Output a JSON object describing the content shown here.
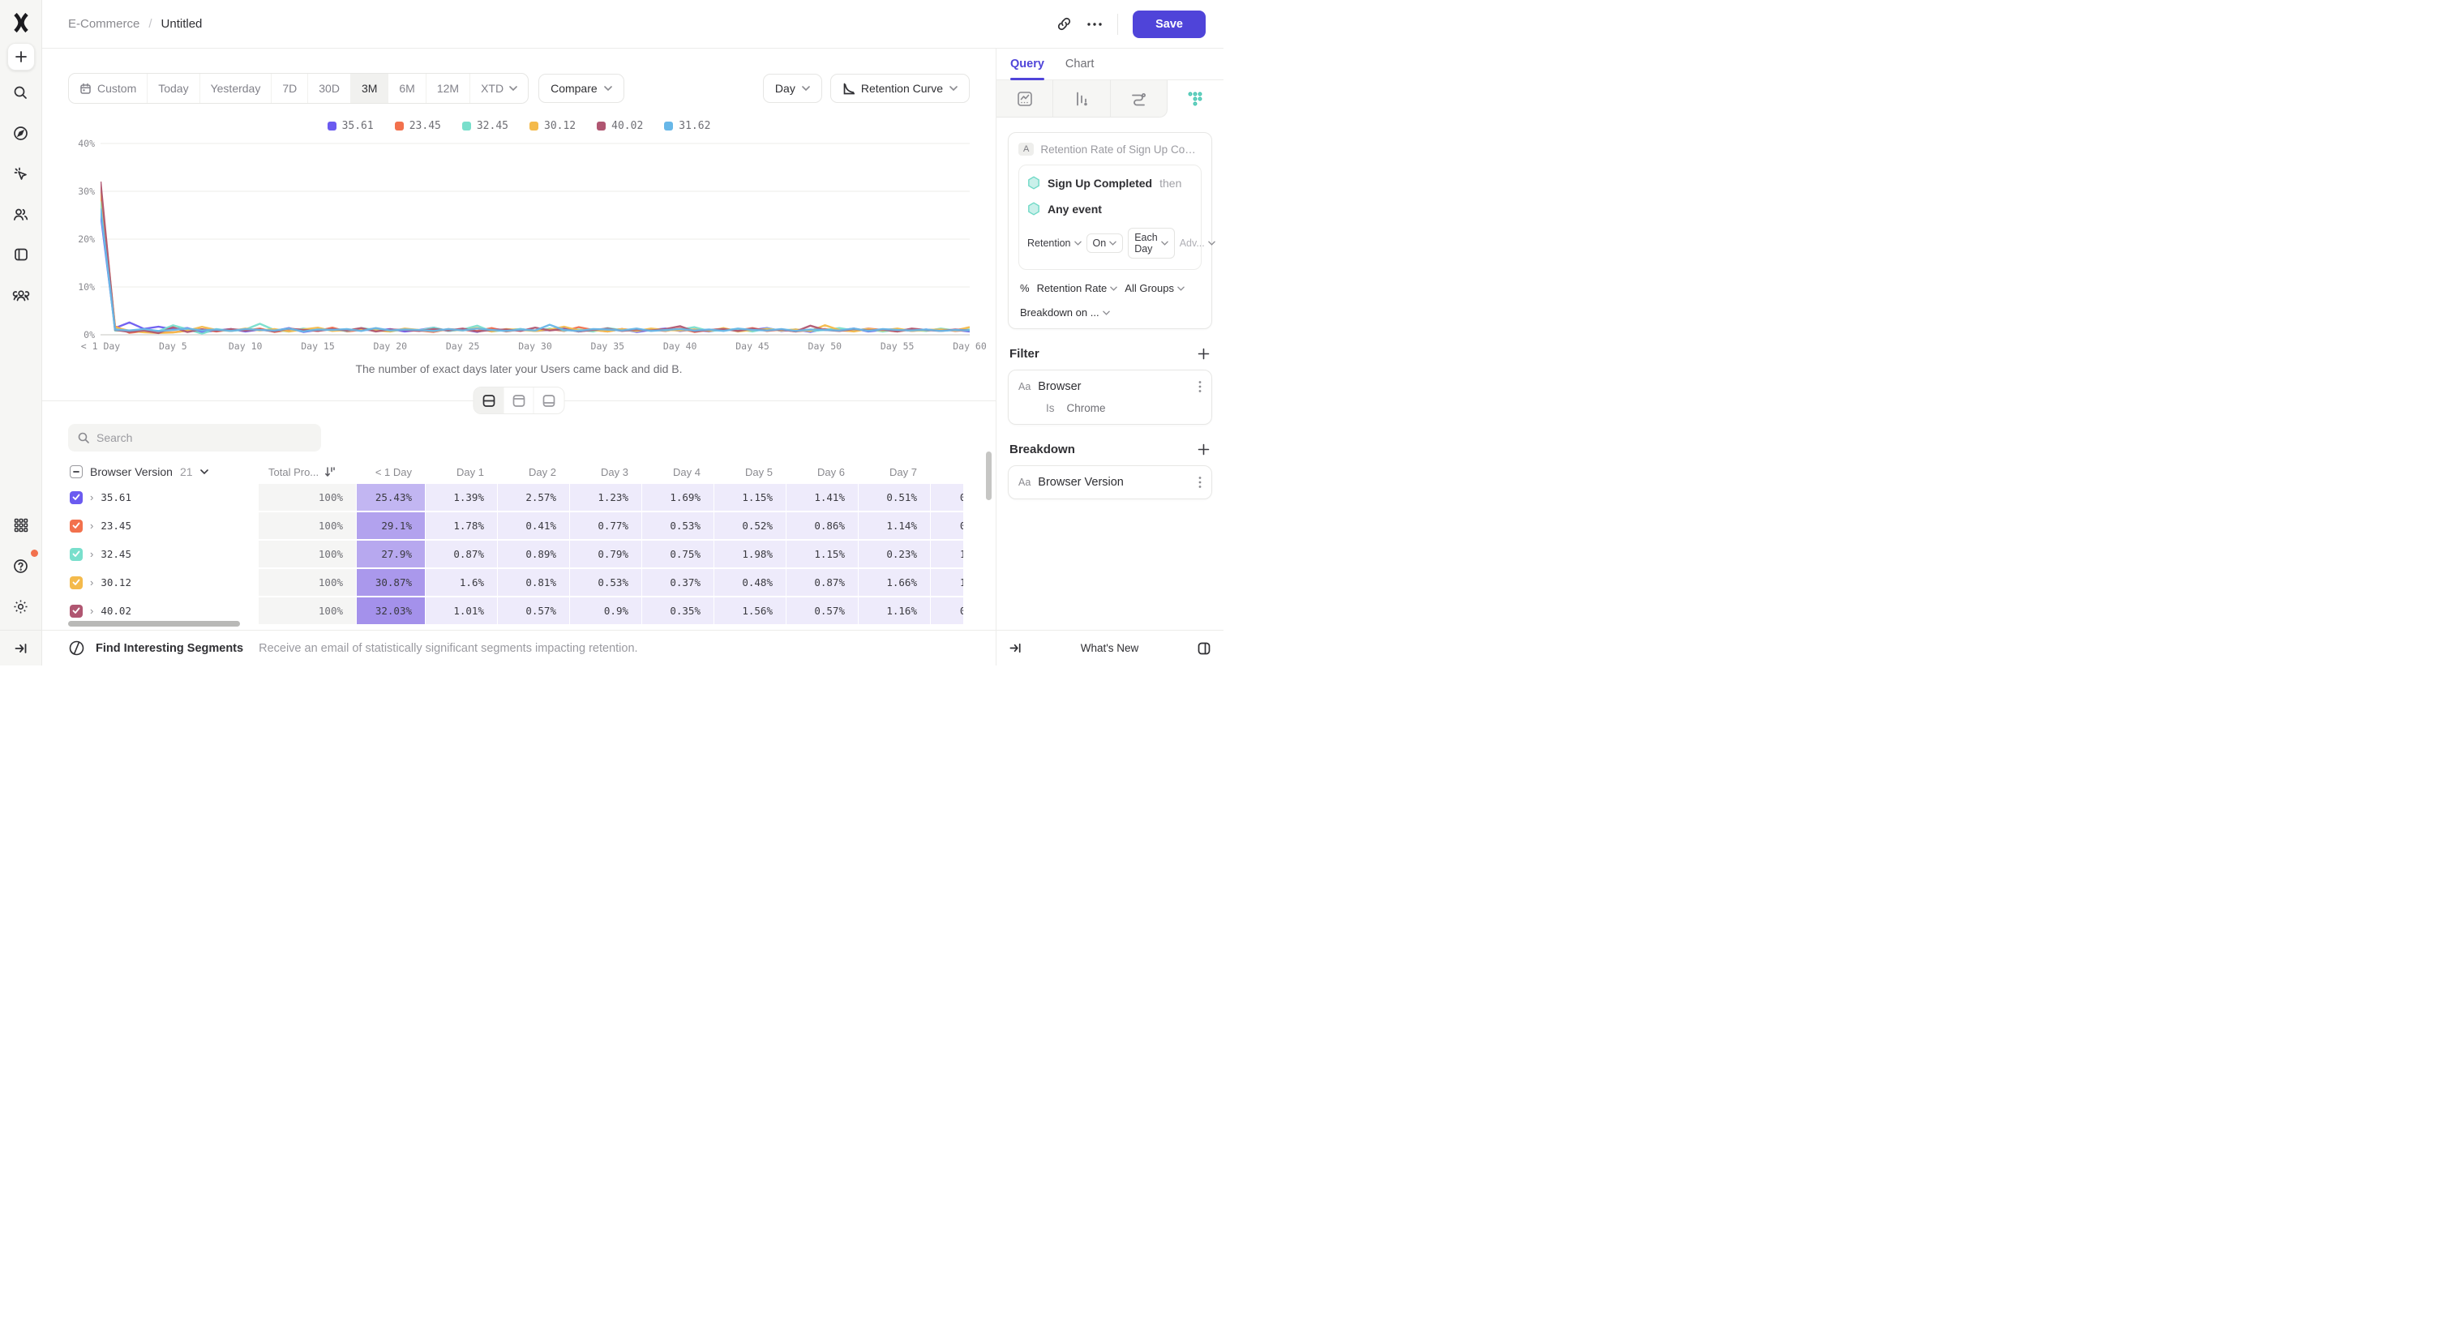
{
  "header": {
    "project": "E-Commerce",
    "separator": "/",
    "doc": "Untitled",
    "save": "Save"
  },
  "sidebar": {
    "icons": [
      "mixpanel-logo",
      "create-plus",
      "search",
      "discover-compass",
      "events-cursor",
      "users",
      "boards",
      "cohorts-group",
      "apps-grid",
      "help",
      "settings-gear",
      "collapse-arrow"
    ]
  },
  "controls": {
    "date_ranges": [
      {
        "label": "Custom",
        "icon": "calendar"
      },
      {
        "label": "Today"
      },
      {
        "label": "Yesterday"
      },
      {
        "label": "7D"
      },
      {
        "label": "30D"
      },
      {
        "label": "3M"
      },
      {
        "label": "6M"
      },
      {
        "label": "12M"
      },
      {
        "label": "XTD",
        "chevron": true
      }
    ],
    "active": "3M",
    "compare": "Compare",
    "granularity": "Day",
    "view": "Retention Curve"
  },
  "legend": [
    {
      "label": "35.61",
      "color": "#6B5BF0"
    },
    {
      "label": "23.45",
      "color": "#F2714D"
    },
    {
      "label": "32.45",
      "color": "#79DFCC"
    },
    {
      "label": "30.12",
      "color": "#F4BA4B"
    },
    {
      "label": "40.02",
      "color": "#B05671"
    },
    {
      "label": "31.62",
      "color": "#67B7E8"
    }
  ],
  "chart": {
    "caption": "The number of exact days later your Users came back and did B.",
    "y_ticks": [
      "40%",
      "30%",
      "20%",
      "10%",
      "0%"
    ],
    "x_ticks": [
      "< 1 Day",
      "Day 5",
      "Day 10",
      "Day 15",
      "Day 20",
      "Day 25",
      "Day 30",
      "Day 35",
      "Day 40",
      "Day 45",
      "Day 50",
      "Day 55",
      "Day 60"
    ]
  },
  "chart_data": {
    "type": "line",
    "title": "Retention Curve",
    "xlabel": "The number of exact days later your Users came back and did B.",
    "ylabel": "Retention Rate",
    "ylim": [
      0,
      40
    ],
    "grid": true,
    "legend_position": "top-center",
    "x": [
      "< 1 Day",
      "Day 1",
      "Day 2",
      "Day 3",
      "Day 4",
      "Day 5",
      "Day 6",
      "Day 7",
      "Day 8",
      "Day 9",
      "Day 10",
      "Day 11",
      "Day 12",
      "Day 13",
      "Day 14",
      "Day 15",
      "Day 16",
      "Day 17",
      "Day 18",
      "Day 19",
      "Day 20",
      "Day 21",
      "Day 22",
      "Day 23",
      "Day 24",
      "Day 25",
      "Day 26",
      "Day 27",
      "Day 28",
      "Day 29",
      "Day 30",
      "Day 31",
      "Day 32",
      "Day 33",
      "Day 34",
      "Day 35",
      "Day 36",
      "Day 37",
      "Day 38",
      "Day 39",
      "Day 40",
      "Day 41",
      "Day 42",
      "Day 43",
      "Day 44",
      "Day 45",
      "Day 46",
      "Day 47",
      "Day 48",
      "Day 49",
      "Day 50",
      "Day 51",
      "Day 52",
      "Day 53",
      "Day 54",
      "Day 55",
      "Day 56",
      "Day 57",
      "Day 58",
      "Day 59",
      "Day 60"
    ],
    "series": [
      {
        "name": "35.61",
        "color": "#6B5BF0",
        "values": [
          25.43,
          1.39,
          2.57,
          1.23,
          1.69,
          1.15,
          1.41,
          0.51,
          0.9,
          1.2,
          0.7,
          1.1,
          0.8,
          1.4,
          0.6,
          1.0,
          1.3,
          0.8,
          1.1,
          0.9,
          1.2,
          0.7,
          1.0,
          1.5,
          0.8,
          1.1,
          0.6,
          1.3,
          0.9,
          1.2,
          0.8,
          1.0,
          1.4,
          0.7,
          1.1,
          0.9,
          1.2,
          0.6,
          1.0,
          1.3,
          0.8,
          1.1,
          0.7,
          1.2,
          0.9,
          1.0,
          1.4,
          0.8,
          1.1,
          0.6,
          1.2,
          0.9,
          1.3,
          0.7,
          1.0,
          1.2,
          0.8,
          1.1,
          0.9,
          1.0,
          0.7
        ]
      },
      {
        "name": "23.45",
        "color": "#F2714D",
        "values": [
          29.1,
          1.78,
          0.41,
          0.77,
          0.53,
          0.52,
          0.86,
          1.14,
          0.7,
          1.1,
          0.9,
          1.3,
          0.6,
          1.0,
          1.2,
          0.8,
          1.5,
          0.7,
          1.0,
          1.3,
          0.8,
          1.1,
          0.9,
          0.6,
          1.2,
          1.0,
          0.8,
          1.4,
          0.7,
          1.1,
          0.9,
          1.2,
          0.8,
          1.6,
          1.0,
          0.7,
          1.2,
          0.9,
          1.1,
          0.8,
          1.3,
          0.6,
          1.0,
          1.2,
          0.9,
          1.4,
          0.8,
          1.1,
          0.7,
          1.0,
          1.2,
          0.9,
          0.8,
          1.3,
          1.0,
          0.7,
          1.1,
          0.9,
          1.2,
          0.8,
          1.0
        ]
      },
      {
        "name": "32.45",
        "color": "#79DFCC",
        "values": [
          27.9,
          0.87,
          0.89,
          0.79,
          0.75,
          1.98,
          1.15,
          0.23,
          1.2,
          0.8,
          1.1,
          2.3,
          1.0,
          0.7,
          1.3,
          0.9,
          1.1,
          0.8,
          1.4,
          1.0,
          0.7,
          1.2,
          0.9,
          1.5,
          0.8,
          1.1,
          1.9,
          0.7,
          1.0,
          1.2,
          0.8,
          1.3,
          0.9,
          1.1,
          0.7,
          1.4,
          1.0,
          0.8,
          1.2,
          0.9,
          1.1,
          1.6,
          0.8,
          1.0,
          1.2,
          0.7,
          1.3,
          0.9,
          1.1,
          0.8,
          1.0,
          1.4,
          0.9,
          1.2,
          0.7,
          1.1,
          1.0,
          0.8,
          1.3,
          0.9,
          1.1
        ]
      },
      {
        "name": "30.12",
        "color": "#F4BA4B",
        "values": [
          30.87,
          1.6,
          0.81,
          0.53,
          0.37,
          0.48,
          0.87,
          1.66,
          1.0,
          0.8,
          1.3,
          0.9,
          1.2,
          0.7,
          1.1,
          1.5,
          0.8,
          1.0,
          1.2,
          0.9,
          0.7,
          1.3,
          1.0,
          0.8,
          1.1,
          0.9,
          1.4,
          0.7,
          1.2,
          1.0,
          0.8,
          1.1,
          1.7,
          0.9,
          1.0,
          0.7,
          1.2,
          0.8,
          1.3,
          1.0,
          0.9,
          1.1,
          0.8,
          1.4,
          0.7,
          1.0,
          1.2,
          0.9,
          1.1,
          0.8,
          2.0,
          1.0,
          0.7,
          1.2,
          0.9,
          1.3,
          0.8,
          1.0,
          1.1,
          0.9,
          1.6
        ]
      },
      {
        "name": "40.02",
        "color": "#B05671",
        "values": [
          32.03,
          1.01,
          0.57,
          0.9,
          0.35,
          1.56,
          0.57,
          1.16,
          0.8,
          1.2,
          0.9,
          1.1,
          0.7,
          1.3,
          1.0,
          0.8,
          1.2,
          0.9,
          1.4,
          0.7,
          1.1,
          1.0,
          0.8,
          1.2,
          0.9,
          1.3,
          0.7,
          1.0,
          1.1,
          0.8,
          1.5,
          0.9,
          1.2,
          0.7,
          1.0,
          1.3,
          0.8,
          1.1,
          0.9,
          1.2,
          1.8,
          0.7,
          1.0,
          1.2,
          0.8,
          1.3,
          0.9,
          1.1,
          0.7,
          1.9,
          1.0,
          0.8,
          1.2,
          0.9,
          1.1,
          0.7,
          1.3,
          1.0,
          0.8,
          1.1,
          0.9
        ]
      },
      {
        "name": "31.62",
        "color": "#67B7E8",
        "values": [
          26.4,
          1.1,
          0.9,
          1.2,
          0.8,
          1.0,
          1.3,
          0.9,
          1.1,
          0.8,
          1.2,
          1.0,
          0.9,
          1.3,
          0.7,
          1.1,
          1.0,
          1.2,
          0.8,
          1.4,
          0.9,
          1.1,
          1.0,
          0.8,
          1.2,
          0.9,
          1.3,
          1.0,
          0.8,
          1.1,
          0.9,
          2.1,
          1.0,
          0.8,
          1.2,
          1.1,
          0.9,
          1.3,
          0.8,
          1.0,
          1.2,
          0.9,
          1.1,
          0.8,
          1.3,
          1.0,
          0.9,
          1.2,
          0.8,
          1.1,
          1.0,
          0.9,
          1.3,
          0.8,
          1.2,
          1.0,
          0.9,
          1.1,
          0.8,
          1.0,
          0.9
        ]
      }
    ]
  },
  "layout_toggles": [
    "split-view",
    "chart-only",
    "table-only"
  ],
  "search": {
    "placeholder": "Search"
  },
  "table": {
    "group": "Browser Version",
    "count": "21",
    "total_col": "Total Pro...",
    "value_cols": [
      "< 1 Day",
      "Day 1",
      "Day 2",
      "Day 3",
      "Day 4",
      "Day 5",
      "Day 6",
      "Day 7"
    ],
    "rows": [
      {
        "label": "35.61",
        "color": "#6B5BF0",
        "total": "100%",
        "cells": [
          "25.43%",
          "1.39%",
          "2.57%",
          "1.23%",
          "1.69%",
          "1.15%",
          "1.41%",
          "0.51%"
        ],
        "partial": "0"
      },
      {
        "label": "23.45",
        "color": "#F2714D",
        "total": "100%",
        "cells": [
          "29.1%",
          "1.78%",
          "0.41%",
          "0.77%",
          "0.53%",
          "0.52%",
          "0.86%",
          "1.14%"
        ],
        "partial": "0"
      },
      {
        "label": "32.45",
        "color": "#79DFCC",
        "total": "100%",
        "cells": [
          "27.9%",
          "0.87%",
          "0.89%",
          "0.79%",
          "0.75%",
          "1.98%",
          "1.15%",
          "0.23%"
        ],
        "partial": "1"
      },
      {
        "label": "30.12",
        "color": "#F4BA4B",
        "total": "100%",
        "cells": [
          "30.87%",
          "1.6%",
          "0.81%",
          "0.53%",
          "0.37%",
          "0.48%",
          "0.87%",
          "1.66%"
        ],
        "partial": "1"
      },
      {
        "label": "40.02",
        "color": "#B05671",
        "total": "100%",
        "cells": [
          "32.03%",
          "1.01%",
          "0.57%",
          "0.9%",
          "0.35%",
          "1.56%",
          "0.57%",
          "1.16%"
        ],
        "partial": "0"
      }
    ]
  },
  "footer": {
    "title": "Find Interesting Segments",
    "desc": "Receive an email of statistically significant segments impacting retention."
  },
  "panel": {
    "tabs": [
      {
        "label": "Query"
      },
      {
        "label": "Chart"
      }
    ],
    "active_tab": "Query",
    "icon_tabs": [
      "insights",
      "funnels",
      "flows",
      "retention"
    ],
    "active_icon_tab": "retention",
    "query": {
      "badge": "A",
      "title": "Retention Rate of Sign Up Compl...",
      "event1": "Sign Up Completed",
      "then_label": "then",
      "event2": "Any event",
      "retention": "Retention",
      "on": "On",
      "each": "Each Day",
      "adv": "Adv...",
      "pct": "%",
      "rate": "Retention Rate",
      "groups": "All Groups",
      "breakdown_on": "Breakdown on ..."
    },
    "filter": {
      "heading": "Filter",
      "type": "Aa",
      "prop": "Browser",
      "op": "Is",
      "value": "Chrome"
    },
    "breakdown": {
      "heading": "Breakdown",
      "type": "Aa",
      "prop": "Browser Version"
    },
    "footer": {
      "whats_new": "What's New"
    }
  },
  "colors": {
    "accent": "#4f44d9",
    "teal_active": "#46c6b2",
    "cell_light": "#eeebfb",
    "cell_dark": "#a492ec",
    "notification": "#f2714d"
  }
}
